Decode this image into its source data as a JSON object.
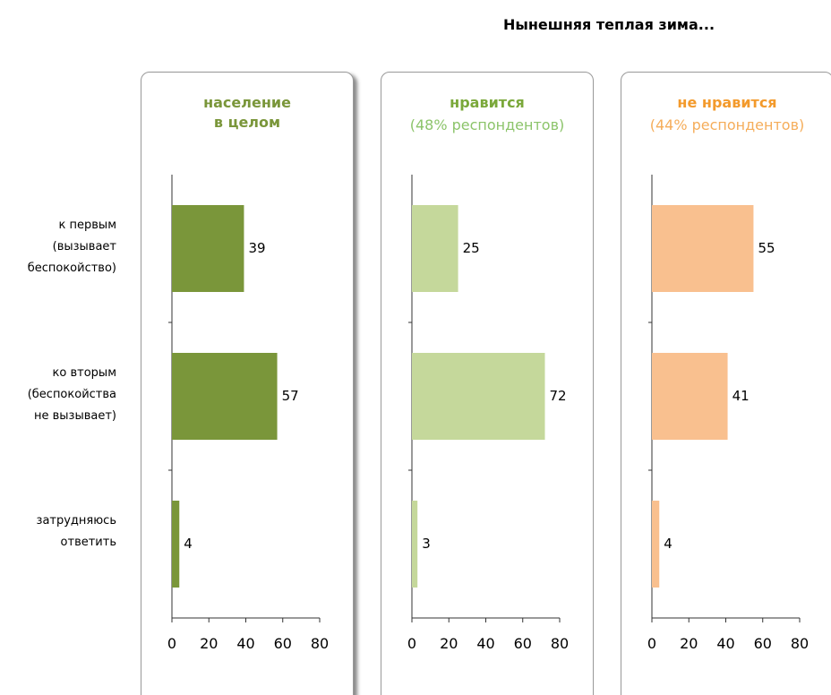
{
  "title": "Нынешняя теплая зима...",
  "categories": [
    "к первым\n(вызывает\nбеспокойство)",
    "ко вторым\n(беспокойства\nне вызывает)",
    "затрудняюсь\nответить"
  ],
  "chart_data": [
    {
      "type": "bar",
      "title": "население\nв целом",
      "title_color": "#7a963a",
      "color": "#7a963a",
      "values": [
        39,
        57,
        4
      ],
      "xlim": [
        0,
        80
      ],
      "xticks": [
        0,
        20,
        40,
        60,
        80
      ]
    },
    {
      "type": "bar",
      "title": "нравится",
      "subtitle": "(48% респондентов)",
      "title_color": "#7aa83a",
      "subtitle_color": "#8cc46a",
      "color": "#c5d89b",
      "values": [
        25,
        72,
        3
      ],
      "xlim": [
        0,
        80
      ],
      "xticks": [
        0,
        20,
        40,
        60,
        80
      ]
    },
    {
      "type": "bar",
      "title": "не нравится",
      "subtitle": "(44% респондентов)",
      "title_color": "#f39a2c",
      "subtitle_color": "#f5ad5a",
      "color": "#f9c08f",
      "values": [
        55,
        41,
        4
      ],
      "xlim": [
        0,
        80
      ],
      "xticks": [
        0,
        20,
        40,
        60,
        80
      ]
    }
  ]
}
